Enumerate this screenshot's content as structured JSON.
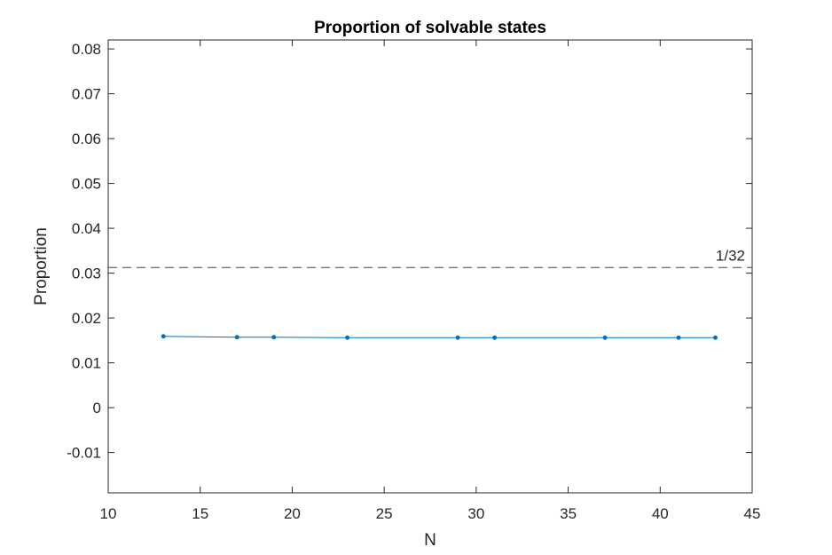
{
  "chart_data": {
    "type": "line",
    "title": "Proportion of solvable states",
    "xlabel": "N",
    "ylabel": "Proportion",
    "xlim": [
      10,
      45
    ],
    "ylim": [
      -0.019,
      0.082
    ],
    "xticks": [
      10,
      15,
      20,
      25,
      30,
      35,
      40,
      45
    ],
    "xtick_labels": [
      "10",
      "15",
      "20",
      "25",
      "30",
      "35",
      "40",
      "45"
    ],
    "yticks": [
      -0.01,
      0,
      0.01,
      0.02,
      0.03,
      0.04,
      0.05,
      0.06,
      0.07,
      0.08
    ],
    "ytick_labels": [
      "-0.01",
      "0",
      "0.01",
      "0.02",
      "0.03",
      "0.04",
      "0.05",
      "0.06",
      "0.07",
      "0.08"
    ],
    "grid": false,
    "series": [
      {
        "x": [
          13,
          17,
          19,
          23,
          29,
          31,
          37,
          41,
          43
        ],
        "y": [
          0.0159,
          0.0157,
          0.0157,
          0.0156,
          0.0156,
          0.0156,
          0.0156,
          0.0156,
          0.0156
        ],
        "color": "#0072BD",
        "marker": "point"
      }
    ],
    "reference_line": {
      "y": 0.03125,
      "label": "1/32",
      "style": "dashed",
      "color": "#404040"
    }
  }
}
